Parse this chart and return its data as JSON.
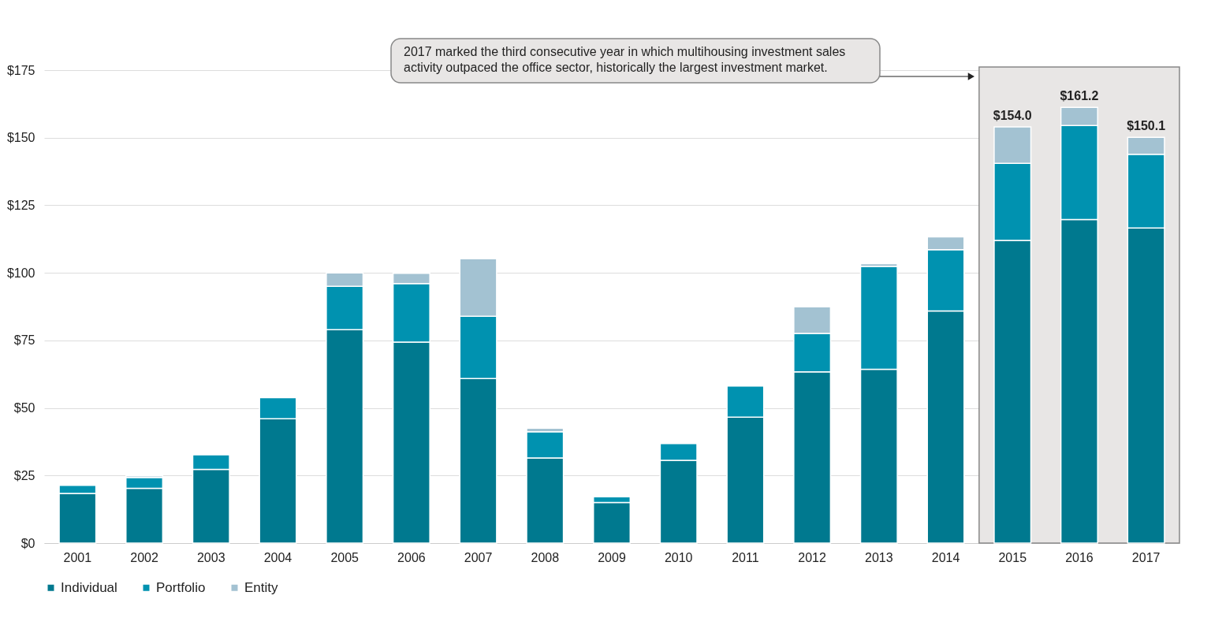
{
  "chart_data": {
    "type": "bar",
    "stacked": true,
    "categories": [
      "2001",
      "2002",
      "2003",
      "2004",
      "2005",
      "2006",
      "2007",
      "2008",
      "2009",
      "2010",
      "2011",
      "2012",
      "2013",
      "2014",
      "2015",
      "2016",
      "2017"
    ],
    "series": [
      {
        "name": "Individual",
        "color": "#00798f",
        "values": [
          18.4,
          20.3,
          27.3,
          46,
          79,
          74.4,
          60.9,
          31.5,
          15,
          30.6,
          46.6,
          63.4,
          64.3,
          85.9,
          112,
          119.7,
          116.6
        ]
      },
      {
        "name": "Portfolio",
        "color": "#0092b0",
        "values": [
          3,
          4,
          5.4,
          7.8,
          16,
          21.6,
          23,
          9.7,
          2.1,
          6.2,
          11.5,
          14.2,
          38.1,
          22.7,
          28.5,
          34.8,
          27.3
        ]
      },
      {
        "name": "Entity",
        "color": "#a3c2d2",
        "values": [
          null,
          0.6,
          null,
          null,
          5,
          3.8,
          21.3,
          1.3,
          null,
          null,
          null,
          9.8,
          1,
          4.7,
          13.5,
          6.7,
          6.2
        ]
      }
    ],
    "totals": [
      null,
      null,
      null,
      null,
      null,
      null,
      null,
      null,
      null,
      null,
      null,
      null,
      null,
      null,
      "$154.0",
      "$161.2",
      "$150.1"
    ],
    "ylim": [
      0,
      175
    ],
    "yticks": [
      {
        "value": 0,
        "label": "$0"
      },
      {
        "value": 25,
        "label": "$25"
      },
      {
        "value": 50,
        "label": "$50"
      },
      {
        "value": 75,
        "label": "$75"
      },
      {
        "value": 100,
        "label": "$100"
      },
      {
        "value": 125,
        "label": "$125"
      },
      {
        "value": 150,
        "label": "$150"
      },
      {
        "value": 175,
        "label": "$175"
      }
    ],
    "grid": "y",
    "legend": "bottom",
    "bands": [
      {
        "axis": "x",
        "from": "2015",
        "to": "2017",
        "color": "#e8e6e5"
      }
    ],
    "annotations": [
      "2017 marked the third consecutive year in which multihousing investment sales activity outpaced the office sector, historically the largest investment market."
    ]
  }
}
